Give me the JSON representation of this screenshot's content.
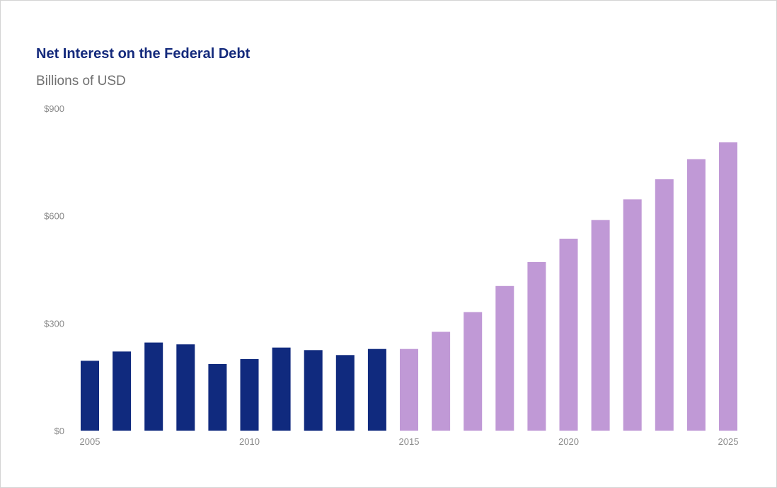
{
  "chart_data": {
    "type": "bar",
    "title": "Net Interest on the Federal Debt",
    "subtitle": "Billions of USD",
    "categories": [
      "2005",
      "2006",
      "2007",
      "2008",
      "2009",
      "2010",
      "2011",
      "2012",
      "2013",
      "2014",
      "2015",
      "2016",
      "2017",
      "2018",
      "2019",
      "2020",
      "2021",
      "2022",
      "2023",
      "2024",
      "2025"
    ],
    "values": [
      195,
      221,
      246,
      241,
      186,
      200,
      232,
      225,
      211,
      228,
      228,
      276,
      331,
      404,
      471,
      536,
      588,
      646,
      702,
      758,
      805
    ],
    "actual_through": "2014",
    "ylim": [
      0,
      900
    ],
    "y_ticks": [
      {
        "value": 0,
        "label": "$0"
      },
      {
        "value": 300,
        "label": "$300"
      },
      {
        "value": 600,
        "label": "$600"
      },
      {
        "value": 900,
        "label": "$900"
      }
    ],
    "x_ticks": [
      "2005",
      "2010",
      "2015",
      "2020",
      "2025"
    ],
    "grid": false,
    "colors": {
      "actual": "#102a7e",
      "projected": "#c099d6",
      "title": "#142a7c",
      "subtitle": "#707070",
      "tick_label": "#8a8a8a"
    }
  }
}
